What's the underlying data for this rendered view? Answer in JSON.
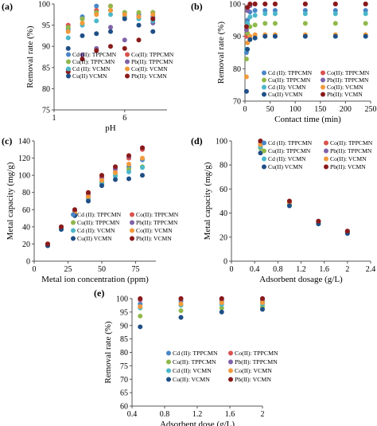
{
  "chart_data": [
    {
      "panel": "(a)",
      "type": "scatter",
      "xlabel": "pH",
      "ylabel": "Removal rate (%)",
      "xlim": [
        1,
        9
      ],
      "ylim": [
        75,
        100
      ],
      "xticks": [
        1,
        6
      ],
      "yticks": [
        75,
        80,
        85,
        90,
        95,
        100
      ],
      "legend_position": "bottom-left",
      "x": [
        2,
        3,
        4,
        5,
        6,
        7,
        8
      ],
      "series": [
        {
          "name": "Cd (II): TPPCMN",
          "color": "#4a86c7",
          "values": [
            94,
            97,
            99.5,
            98.5,
            98,
            97.5,
            97
          ]
        },
        {
          "name": "Co(II): TPPCMN",
          "color": "#d9534f",
          "values": [
            95,
            96.5,
            98.5,
            99.5,
            97,
            97,
            98
          ]
        },
        {
          "name": "Cu(II): TPPCMN",
          "color": "#90b84a",
          "values": [
            94.5,
            96.5,
            98,
            99.5,
            98,
            98,
            98
          ]
        },
        {
          "name": "Pb(II): TPPCMN",
          "color": "#7f63a8",
          "values": [
            84.5,
            88,
            89.5,
            94.5,
            91.5,
            97,
            95.5
          ]
        },
        {
          "name": "Cd (II): VCMN",
          "color": "#4bb7c9",
          "values": [
            92,
            95,
            96,
            97.5,
            97,
            96.5,
            96
          ]
        },
        {
          "name": "Co(II): VCMN",
          "color": "#f29a3b",
          "values": [
            93.5,
            95.5,
            97.5,
            98.5,
            97.5,
            97,
            97.5
          ]
        },
        {
          "name": "Cu(II) VCMN",
          "color": "#1f4f86",
          "values": [
            89.5,
            92.5,
            93,
            93.5,
            96.5,
            95,
            93.5
          ]
        },
        {
          "name": "Pb(II): VCMN",
          "color": "#8a1a1a",
          "values": [
            84,
            87,
            89,
            90,
            89.5,
            91.5,
            96.5
          ]
        }
      ]
    },
    {
      "panel": "(b)",
      "type": "scatter",
      "xlabel": "Contact time (min)",
      "ylabel": "Removal rate (%)",
      "xlim": [
        0,
        250
      ],
      "ylim": [
        70,
        100
      ],
      "xticks": [
        0,
        50,
        100,
        150,
        200,
        250
      ],
      "yticks": [
        70,
        80,
        90,
        100
      ],
      "legend_position": "bottom-right",
      "x": [
        3,
        5,
        10,
        20,
        40,
        60,
        120,
        180,
        240
      ],
      "series": [
        {
          "name": "Cd (II): TPPCMN",
          "color": "#4a86c7",
          "values": [
            85,
            95,
            97.5,
            98,
            98,
            98,
            98,
            98,
            98
          ]
        },
        {
          "name": "Co(II): TPPCMN",
          "color": "#d9534f",
          "values": [
            90,
            98,
            99.5,
            100,
            100,
            100,
            100,
            100,
            100
          ]
        },
        {
          "name": "Cu(II): TPPCMN",
          "color": "#90b84a",
          "values": [
            83,
            91,
            93,
            93.5,
            94,
            94,
            94,
            94,
            94
          ]
        },
        {
          "name": "Pb(II): TPPCMN",
          "color": "#7f63a8",
          "values": [
            92,
            98,
            99.5,
            100,
            100,
            100,
            100,
            100,
            100
          ]
        },
        {
          "name": "Cd (II): VCMN",
          "color": "#4bb7c9",
          "values": [
            86,
            94,
            96,
            96.5,
            97,
            97,
            97,
            97,
            97
          ]
        },
        {
          "name": "Co(II): VCMN",
          "color": "#f29a3b",
          "values": [
            77.5,
            88,
            90,
            90.5,
            90.5,
            90.5,
            90.5,
            90.5,
            90.5
          ]
        },
        {
          "name": "Cu(II) VCMN",
          "color": "#1f4f86",
          "values": [
            73,
            86,
            89,
            89.5,
            90,
            90,
            90,
            90,
            90
          ]
        },
        {
          "name": "Pb(II): VCMN",
          "color": "#8a1a1a",
          "values": [
            93,
            99,
            100,
            100,
            100,
            100,
            100,
            100,
            100
          ]
        }
      ]
    },
    {
      "panel": "(c)",
      "type": "scatter",
      "xlabel": "Metal ion concentration (ppm)",
      "ylabel": "Metal capacity (mg/g)",
      "xlim": [
        0,
        90
      ],
      "ylim": [
        0,
        140
      ],
      "xticks": [
        0,
        25,
        50,
        75
      ],
      "yticks": [
        0,
        20,
        40,
        60,
        80,
        100,
        120,
        140
      ],
      "legend_position": "bottom-right",
      "x": [
        10,
        20,
        30,
        40,
        50,
        60,
        70,
        80
      ],
      "series": [
        {
          "name": "Cd (II): TPPCMN",
          "color": "#4a86c7",
          "values": [
            20,
            39,
            57,
            74,
            92,
            103,
            110,
            118
          ]
        },
        {
          "name": "Co(II): TPPCMN",
          "color": "#d9534f",
          "values": [
            20,
            40,
            58,
            77,
            97,
            107,
            120,
            130
          ]
        },
        {
          "name": "Cu(II): TPPCMN",
          "color": "#90b84a",
          "values": [
            20,
            39,
            56,
            73,
            91,
            100,
            107,
            110
          ]
        },
        {
          "name": "Pb(II): TPPCMN",
          "color": "#7f63a8",
          "values": [
            20,
            40,
            59,
            79,
            99,
            108,
            122,
            132
          ]
        },
        {
          "name": "Cd (II): VCMN",
          "color": "#4bb7c9",
          "values": [
            19,
            38,
            55,
            72,
            90,
            99,
            104,
            109
          ]
        },
        {
          "name": "Co(II): VCMN",
          "color": "#f29a3b",
          "values": [
            20,
            39,
            56,
            75,
            94,
            103,
            113,
            120
          ]
        },
        {
          "name": "Cu(II) VCMN",
          "color": "#1f4f86",
          "values": [
            18,
            37,
            53,
            70,
            88,
            95,
            96,
            100
          ]
        },
        {
          "name": "Pb(II): VCMN",
          "color": "#8a1a1a",
          "values": [
            20,
            40,
            60,
            80,
            100,
            110,
            123,
            132
          ]
        }
      ]
    },
    {
      "panel": "(d)",
      "type": "scatter",
      "xlabel": "Adsorbent dosage (g/L)",
      "ylabel": "Metal capacity (mg/g)",
      "xlim": [
        0,
        2.4
      ],
      "ylim": [
        0,
        100
      ],
      "xticks": [
        0,
        0.4,
        0.8,
        1.2,
        1.6,
        2,
        2.4
      ],
      "yticks": [
        0,
        20,
        40,
        60,
        80,
        100
      ],
      "legend_position": "top-right",
      "x": [
        0.5,
        1.0,
        1.5,
        2.0
      ],
      "series": [
        {
          "name": "Cd (II): TPPCMN",
          "color": "#4a86c7",
          "values": [
            96,
            48,
            32,
            24
          ]
        },
        {
          "name": "Co(II): TPPCMN",
          "color": "#d9534f",
          "values": [
            99,
            49.5,
            33,
            24.8
          ]
        },
        {
          "name": "Cu(II): TPPCMN",
          "color": "#90b84a",
          "values": [
            94,
            47,
            31.5,
            23.5
          ]
        },
        {
          "name": "Pb(II): TPPCMN",
          "color": "#7f63a8",
          "values": [
            99.5,
            49.8,
            33.2,
            25
          ]
        },
        {
          "name": "Cd (II): VCMN",
          "color": "#4bb7c9",
          "values": [
            95,
            47.5,
            31.8,
            23.8
          ]
        },
        {
          "name": "Co(II): VCMN",
          "color": "#f29a3b",
          "values": [
            97,
            48.5,
            32.5,
            24.3
          ]
        },
        {
          "name": "Cu(II) VCMN",
          "color": "#1f4f86",
          "values": [
            90,
            46,
            31,
            23
          ]
        },
        {
          "name": "Pb(II): VCMN",
          "color": "#8a1a1a",
          "values": [
            100,
            50,
            33.3,
            25
          ]
        }
      ]
    },
    {
      "panel": "(e)",
      "type": "scatter",
      "xlabel": "Adsorbent dose (g/L)",
      "ylabel": "Removal rate (%)",
      "xlim": [
        0.4,
        2.0
      ],
      "ylim": [
        60,
        100
      ],
      "xticks": [
        0.4,
        0.8,
        1.2,
        1.6,
        2
      ],
      "yticks": [
        60,
        65,
        70,
        75,
        80,
        85,
        90,
        95,
        100
      ],
      "legend_position": "bottom-right",
      "x": [
        0.5,
        1.0,
        1.5,
        2.0
      ],
      "series": [
        {
          "name": "Cd (II): TPPCMN",
          "color": "#4a86c7",
          "values": [
            98,
            99,
            99,
            99
          ]
        },
        {
          "name": "Co(II): TPPCMN",
          "color": "#d9534f",
          "values": [
            99.5,
            99.8,
            99.8,
            99.8
          ]
        },
        {
          "name": "Cu(II): TPPCMN",
          "color": "#90b84a",
          "values": [
            93.5,
            95.5,
            96.5,
            97
          ]
        },
        {
          "name": "Pb(II): TPPCMN",
          "color": "#7f63a8",
          "values": [
            99.8,
            100,
            100,
            100
          ]
        },
        {
          "name": "Cd (II): VCMN",
          "color": "#4bb7c9",
          "values": [
            96.5,
            97.5,
            97.8,
            98
          ]
        },
        {
          "name": "Co(II): VCMN",
          "color": "#f29a3b",
          "values": [
            97,
            98,
            98.5,
            98.5
          ]
        },
        {
          "name": "Cu(II): VCMN",
          "color": "#1f4f86",
          "values": [
            89.5,
            93,
            95,
            96
          ]
        },
        {
          "name": "Pb(II): VCMN",
          "color": "#8a1a1a",
          "values": [
            100,
            100,
            100,
            100
          ]
        }
      ]
    }
  ]
}
